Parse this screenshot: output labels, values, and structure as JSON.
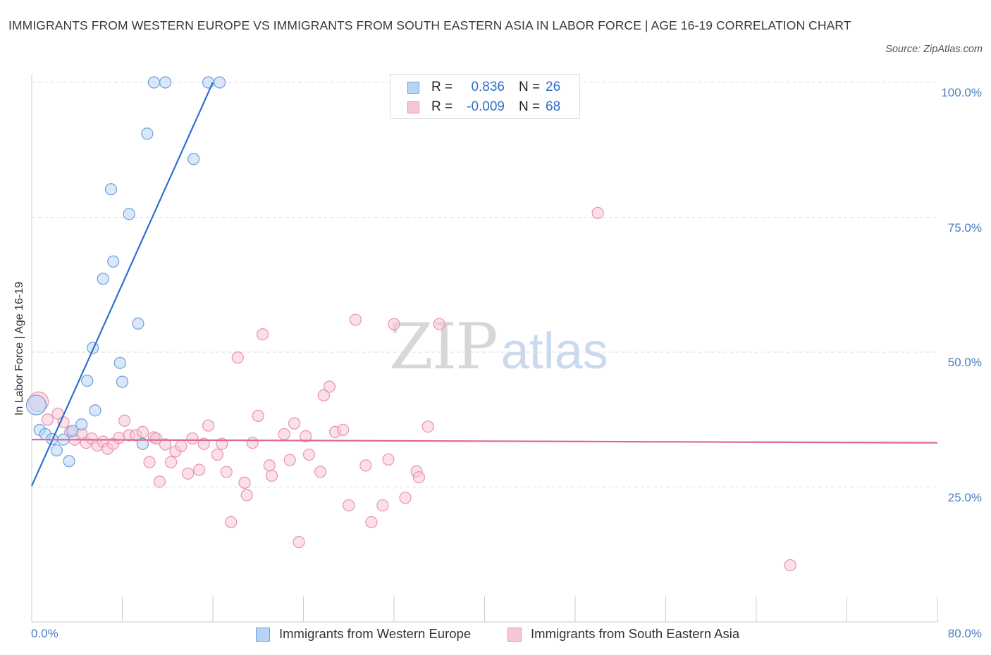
{
  "title": "IMMIGRANTS FROM WESTERN EUROPE VS IMMIGRANTS FROM SOUTH EASTERN ASIA IN LABOR FORCE | AGE 16-19 CORRELATION CHART",
  "source": "Source: ZipAtlas.com",
  "watermark": {
    "zip": "ZIP",
    "atlas": "atlas"
  },
  "legend": {
    "rows": [
      {
        "r_label": "R =",
        "r_value": "0.836",
        "n_label": "N =",
        "n_value": "26"
      },
      {
        "r_label": "R =",
        "r_value": "-0.009",
        "n_label": "N =",
        "n_value": "68"
      }
    ]
  },
  "colors": {
    "blue_fill": "#b8d4f4",
    "blue_stroke": "#6f9fd8",
    "blue_line": "#2e6fd0",
    "pink_fill": "#f7c6d6",
    "pink_stroke": "#e892b0",
    "pink_line": "#e06890",
    "grid": "#dddddd",
    "tick_text": "#4a7cc4"
  },
  "chart_data": {
    "type": "scatter",
    "title": "IMMIGRANTS FROM WESTERN EUROPE VS IMMIGRANTS FROM SOUTH EASTERN ASIA IN LABOR FORCE | AGE 16-19 CORRELATION CHART",
    "xlabel": "",
    "ylabel": "In Labor Force | Age 16-19",
    "xlim": [
      0,
      80
    ],
    "ylim": [
      0,
      100
    ],
    "x_tick_labels": [
      "0.0%",
      "80.0%"
    ],
    "y_ticks": [
      {
        "value": 100,
        "label": "100.0%"
      },
      {
        "value": 75,
        "label": "75.0%"
      },
      {
        "value": 50,
        "label": "50.0%"
      },
      {
        "value": 25,
        "label": "25.0%"
      }
    ],
    "grid": "horizontal dashed",
    "series": [
      {
        "name": "Immigrants from Western Europe",
        "color": "blue",
        "R": 0.836,
        "N": 26,
        "trend": {
          "x0": 0,
          "y0": 25.2,
          "x1": 16.0,
          "y1": 100
        },
        "points": [
          [
            10.8,
            100
          ],
          [
            11.8,
            100
          ],
          [
            15.6,
            100
          ],
          [
            16.6,
            100
          ],
          [
            10.2,
            90.5
          ],
          [
            14.3,
            85.8
          ],
          [
            7.0,
            80.2
          ],
          [
            8.6,
            75.6
          ],
          [
            7.2,
            66.8
          ],
          [
            6.3,
            63.6
          ],
          [
            9.4,
            55.3
          ],
          [
            5.4,
            50.8
          ],
          [
            7.8,
            48.0
          ],
          [
            8.0,
            44.5
          ],
          [
            4.9,
            44.7
          ],
          [
            5.6,
            39.2
          ],
          [
            0.4,
            40.2
          ],
          [
            0.7,
            35.6
          ],
          [
            1.2,
            34.8
          ],
          [
            1.8,
            33.9
          ],
          [
            2.8,
            33.8
          ],
          [
            3.6,
            35.4
          ],
          [
            4.4,
            36.6
          ],
          [
            9.8,
            33.0
          ],
          [
            2.2,
            31.8
          ],
          [
            3.3,
            29.8
          ]
        ]
      },
      {
        "name": "Immigrants from South Eastern Asia",
        "color": "pink",
        "R": -0.009,
        "N": 68,
        "trend": {
          "x0": 0,
          "y0": 33.8,
          "x1": 80,
          "y1": 33.2
        },
        "points": [
          [
            0.6,
            40.8
          ],
          [
            1.4,
            37.5
          ],
          [
            2.3,
            38.6
          ],
          [
            2.8,
            37.0
          ],
          [
            3.4,
            35.2
          ],
          [
            3.8,
            33.8
          ],
          [
            4.4,
            34.9
          ],
          [
            4.8,
            33.2
          ],
          [
            5.3,
            34.0
          ],
          [
            5.8,
            32.7
          ],
          [
            6.3,
            33.4
          ],
          [
            6.7,
            32.1
          ],
          [
            7.2,
            33.0
          ],
          [
            7.7,
            34.1
          ],
          [
            8.2,
            37.3
          ],
          [
            8.6,
            34.6
          ],
          [
            9.2,
            34.6
          ],
          [
            9.8,
            35.2
          ],
          [
            10.4,
            29.6
          ],
          [
            10.8,
            34.2
          ],
          [
            11.3,
            26.0
          ],
          [
            11.8,
            32.9
          ],
          [
            12.3,
            29.6
          ],
          [
            12.7,
            31.6
          ],
          [
            13.2,
            32.6
          ],
          [
            13.8,
            27.5
          ],
          [
            14.2,
            34.0
          ],
          [
            14.8,
            28.2
          ],
          [
            15.2,
            33.0
          ],
          [
            15.6,
            36.4
          ],
          [
            16.4,
            31.0
          ],
          [
            16.8,
            33.0
          ],
          [
            17.2,
            27.8
          ],
          [
            17.6,
            18.5
          ],
          [
            18.2,
            49.0
          ],
          [
            18.8,
            25.8
          ],
          [
            19.0,
            23.5
          ],
          [
            20.0,
            38.2
          ],
          [
            20.4,
            53.3
          ],
          [
            21.0,
            29.0
          ],
          [
            21.2,
            27.1
          ],
          [
            22.3,
            34.8
          ],
          [
            22.8,
            30.0
          ],
          [
            23.2,
            36.8
          ],
          [
            23.6,
            14.8
          ],
          [
            24.2,
            34.4
          ],
          [
            24.5,
            31.0
          ],
          [
            25.5,
            27.8
          ],
          [
            25.8,
            42.0
          ],
          [
            26.3,
            43.6
          ],
          [
            26.8,
            35.2
          ],
          [
            27.5,
            35.6
          ],
          [
            28.0,
            21.6
          ],
          [
            28.6,
            56.0
          ],
          [
            29.5,
            29.0
          ],
          [
            30.0,
            18.5
          ],
          [
            31.0,
            21.6
          ],
          [
            31.5,
            30.1
          ],
          [
            32.0,
            55.2
          ],
          [
            33.0,
            23.0
          ],
          [
            34.0,
            27.9
          ],
          [
            34.2,
            26.8
          ],
          [
            35.0,
            36.2
          ],
          [
            36.0,
            55.2
          ],
          [
            50.0,
            75.8
          ],
          [
            67.0,
            10.5
          ],
          [
            11.0,
            34.0
          ],
          [
            19.5,
            33.2
          ]
        ]
      }
    ]
  }
}
